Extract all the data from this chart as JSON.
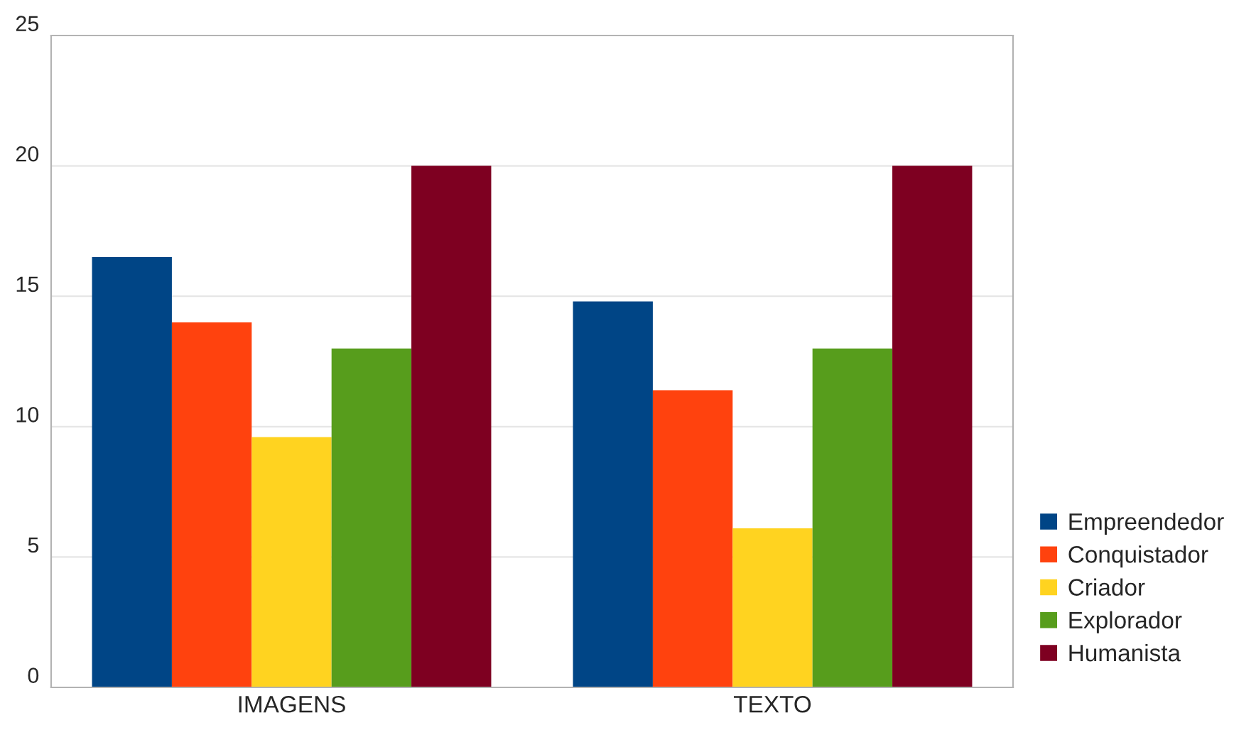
{
  "chart_data": {
    "type": "bar",
    "categories": [
      "IMAGENS",
      "TEXTO"
    ],
    "series": [
      {
        "name": "Empreendedor",
        "color": "#004586",
        "values": [
          16.5,
          14.8
        ]
      },
      {
        "name": "Conquistador",
        "color": "#ff420e",
        "values": [
          14,
          11.4
        ]
      },
      {
        "name": "Criador",
        "color": "#ffd320",
        "values": [
          9.6,
          6.1
        ]
      },
      {
        "name": "Explorador",
        "color": "#579d1c",
        "values": [
          13,
          13
        ]
      },
      {
        "name": "Humanista",
        "color": "#7e0021",
        "values": [
          20,
          20
        ]
      }
    ],
    "ylim": [
      0,
      25
    ],
    "yticks": [
      0,
      5,
      10,
      15,
      20,
      25
    ],
    "grid": "y",
    "legend": "bottom right"
  }
}
